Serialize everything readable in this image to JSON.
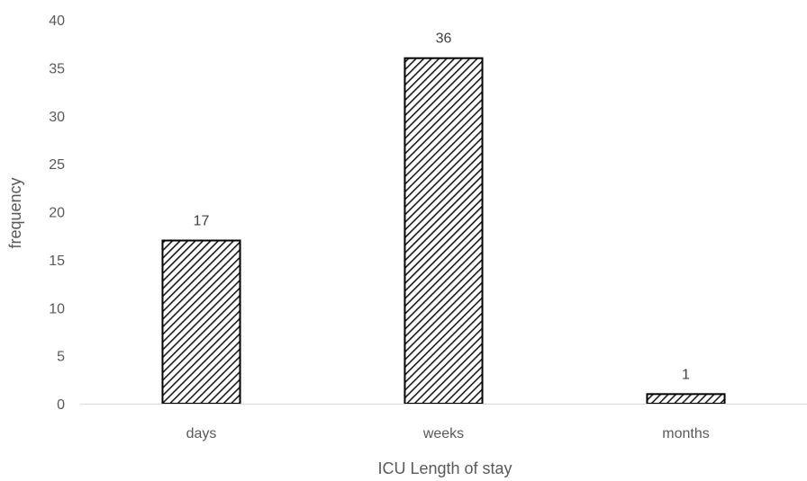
{
  "chart_data": {
    "type": "bar",
    "categories": [
      "days",
      "weeks",
      "months"
    ],
    "values": [
      17,
      36,
      1
    ],
    "data_labels": [
      "17",
      "36",
      "1"
    ],
    "xlabel": "ICU Length of stay",
    "ylabel": "frequency",
    "ylim": [
      0,
      40
    ],
    "yticks": [
      "0",
      "5",
      "10",
      "15",
      "20",
      "25",
      "30",
      "35",
      "40"
    ],
    "grid": false,
    "legend": "none",
    "bar_fill": "hatched",
    "bar_color": "#000000"
  }
}
